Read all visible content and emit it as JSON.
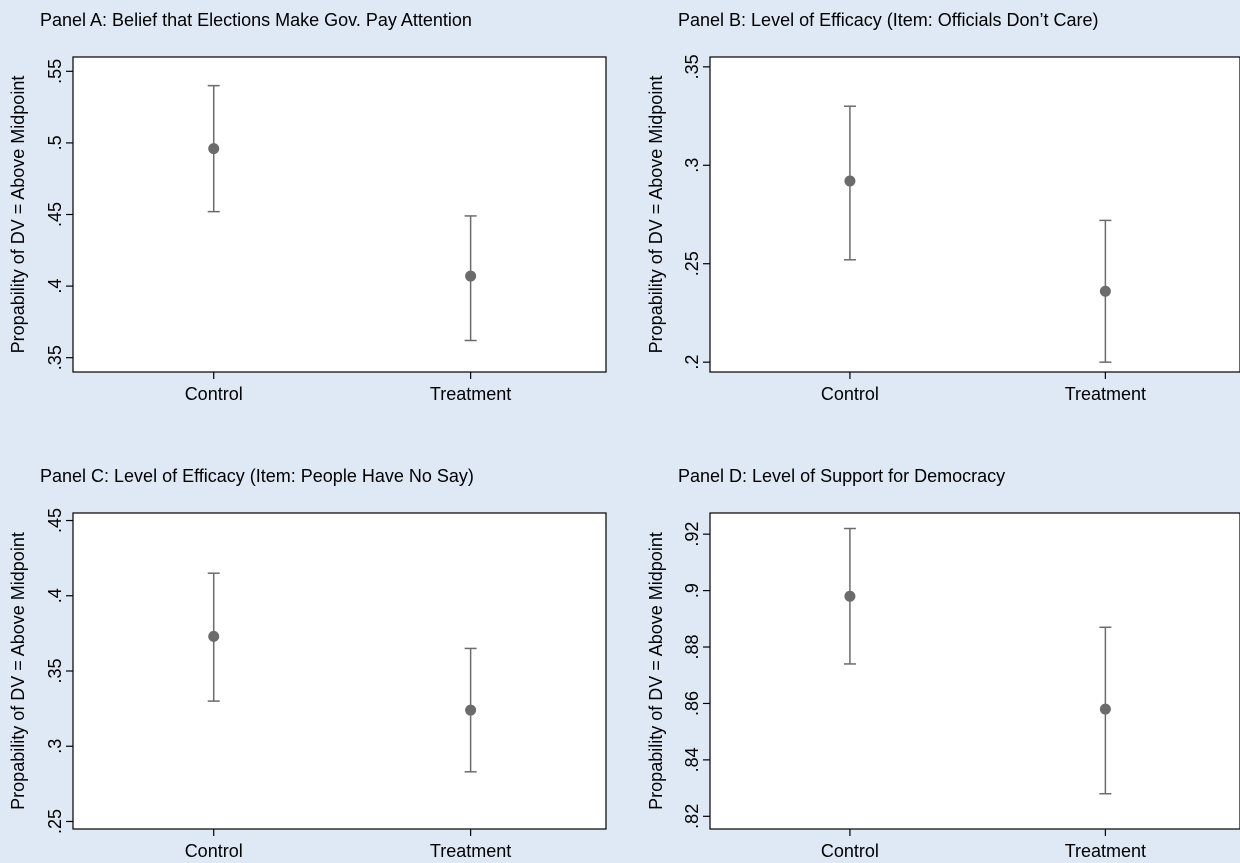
{
  "chart_data": [
    {
      "type": "scatter",
      "panel": "A",
      "title": "Panel A: Belief that Elections Make Gov. Pay Attention",
      "xlabel": "",
      "ylabel": "Propability of DV = Above Midpoint",
      "categories": [
        "Control",
        "Treatment"
      ],
      "values": [
        0.496,
        0.407
      ],
      "ci_low": [
        0.452,
        0.362
      ],
      "ci_high": [
        0.54,
        0.449
      ],
      "ylim": [
        0.34,
        0.56
      ],
      "yticks": [
        0.35,
        0.4,
        0.45,
        0.5,
        0.55
      ],
      "ytick_labels": [
        ".35",
        ".4",
        ".45",
        ".5",
        ".55"
      ],
      "grid": false
    },
    {
      "type": "scatter",
      "panel": "B",
      "title": "Panel B: Level of Efficacy (Item: Officials Don’t Care)",
      "xlabel": "",
      "ylabel": "Propability of DV = Above Midpoint",
      "categories": [
        "Control",
        "Treatment"
      ],
      "values": [
        0.292,
        0.236
      ],
      "ci_low": [
        0.252,
        0.2
      ],
      "ci_high": [
        0.33,
        0.272
      ],
      "ylim": [
        0.195,
        0.355
      ],
      "yticks": [
        0.2,
        0.25,
        0.3,
        0.35
      ],
      "ytick_labels": [
        ".2",
        ".25",
        ".3",
        ".35"
      ],
      "grid": false
    },
    {
      "type": "scatter",
      "panel": "C",
      "title": "Panel C: Level of Efficacy (Item: People Have No Say)",
      "xlabel": "",
      "ylabel": "Propability of DV = Above Midpoint",
      "categories": [
        "Control",
        "Treatment"
      ],
      "values": [
        0.373,
        0.324
      ],
      "ci_low": [
        0.33,
        0.283
      ],
      "ci_high": [
        0.415,
        0.365
      ],
      "ylim": [
        0.245,
        0.455
      ],
      "yticks": [
        0.25,
        0.3,
        0.35,
        0.4,
        0.45
      ],
      "ytick_labels": [
        ".25",
        ".3",
        ".35",
        ".4",
        ".45"
      ],
      "grid": false
    },
    {
      "type": "scatter",
      "panel": "D",
      "title": "Panel D: Level of Support for Democracy",
      "xlabel": "",
      "ylabel": "Propability of DV = Above Midpoint",
      "categories": [
        "Control",
        "Treatment"
      ],
      "values": [
        0.898,
        0.858
      ],
      "ci_low": [
        0.874,
        0.828
      ],
      "ci_high": [
        0.922,
        0.887
      ],
      "ylim": [
        0.8155,
        0.9275
      ],
      "yticks": [
        0.82,
        0.84,
        0.86,
        0.88,
        0.9,
        0.92
      ],
      "ytick_labels": [
        ".82",
        ".84",
        ".86",
        ".88",
        ".9",
        ".92"
      ],
      "grid": false
    }
  ],
  "colors": {
    "background": "#dfe9f5",
    "plot_area": "#ffffff",
    "marker": "#6b6b6b",
    "errorbar": "#6b6b6b",
    "axis": "#000000"
  }
}
